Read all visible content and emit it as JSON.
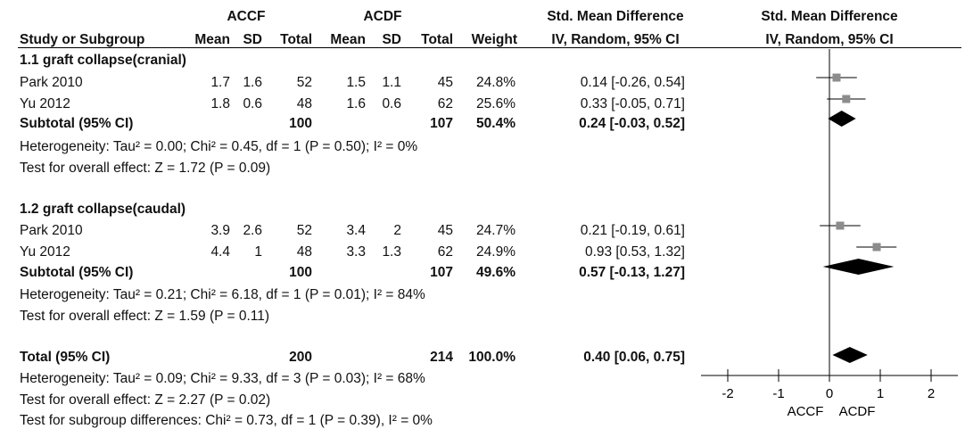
{
  "header": {
    "group1": "ACCF",
    "group2": "ACDF",
    "effect_header": "Std. Mean Difference",
    "plot_header": "Std. Mean Difference",
    "col_study": "Study or Subgroup",
    "col_mean1": "Mean",
    "col_sd1": "SD",
    "col_total1": "Total",
    "col_mean2": "Mean",
    "col_sd2": "SD",
    "col_total2": "Total",
    "col_weight": "Weight",
    "col_ci": "IV, Random, 95% CI",
    "plot_ci": "IV, Random, 95% CI"
  },
  "subgroups": [
    {
      "label": "1.1    graft collapse(cranial)",
      "studies": [
        {
          "name": "Park 2010",
          "mean1": "1.7",
          "sd1": "1.6",
          "total1": "52",
          "mean2": "1.5",
          "sd2": "1.1",
          "total2": "45",
          "weight": "24.8%",
          "ci_text": "0.14 [-0.26, 0.54]"
        },
        {
          "name": "Yu 2012",
          "mean1": "1.8",
          "sd1": "0.6",
          "total1": "48",
          "mean2": "1.6",
          "sd2": "0.6",
          "total2": "62",
          "weight": "25.6%",
          "ci_text": "0.33 [-0.05, 0.71]"
        }
      ],
      "subtotal": {
        "label": "Subtotal (95% CI)",
        "total1": "100",
        "total2": "107",
        "weight": "50.4%",
        "ci_text": "0.24 [-0.03, 0.52]"
      },
      "heterogeneity": "Heterogeneity: Tau² = 0.00; Chi² = 0.45, df = 1 (P = 0.50); I² = 0%",
      "overall": "Test for overall effect: Z = 1.72 (P = 0.09)"
    },
    {
      "label": "1.2    graft collapse(caudal)",
      "studies": [
        {
          "name": "Park 2010",
          "mean1": "3.9",
          "sd1": "2.6",
          "total1": "52",
          "mean2": "3.4",
          "sd2": "2",
          "total2": "45",
          "weight": "24.7%",
          "ci_text": "0.21 [-0.19, 0.61]"
        },
        {
          "name": "Yu 2012",
          "mean1": "4.4",
          "sd1": "1",
          "total1": "48",
          "mean2": "3.3",
          "sd2": "1.3",
          "total2": "62",
          "weight": "24.9%",
          "ci_text": "0.93 [0.53, 1.32]"
        }
      ],
      "subtotal": {
        "label": "Subtotal (95% CI)",
        "total1": "100",
        "total2": "107",
        "weight": "49.6%",
        "ci_text": "0.57 [-0.13, 1.27]"
      },
      "heterogeneity": "Heterogeneity: Tau² = 0.21; Chi² = 6.18, df = 1 (P = 0.01); I² = 84%",
      "overall": "Test for overall effect: Z = 1.59 (P = 0.11)"
    }
  ],
  "total": {
    "label": "Total (95% CI)",
    "total1": "200",
    "total2": "214",
    "weight": "100.0%",
    "ci_text": "0.40 [0.06, 0.75]"
  },
  "footer": {
    "heterogeneity": "Heterogeneity: Tau² = 0.09; Chi² = 9.33, df = 3 (P = 0.03); I² = 68%",
    "overall": "Test for overall effect: Z = 2.27 (P = 0.02)",
    "subgroup_diff": "Test for subgroup differences: Chi² = 0.73, df = 1 (P = 0.39), I² = 0%"
  },
  "colors": {
    "marker": "#8c8c8c",
    "diamond": "#000000"
  },
  "chart_data": {
    "type": "scatter",
    "title": "Std. Mean Difference",
    "xlabel": "IV, Random, 95% CI",
    "xlim": [
      -2,
      2
    ],
    "xticks": [
      "-2",
      "-1",
      "0",
      "1",
      "2"
    ],
    "direction_labels": [
      "ACCF",
      "ACDF"
    ],
    "points": [
      {
        "row": "Park 2010 (cranial)",
        "kind": "study",
        "est": 0.14,
        "lo": -0.26,
        "hi": 0.54
      },
      {
        "row": "Yu 2012 (cranial)",
        "kind": "study",
        "est": 0.33,
        "lo": -0.05,
        "hi": 0.71
      },
      {
        "row": "Subtotal (cranial)",
        "kind": "diamond",
        "est": 0.24,
        "lo": -0.03,
        "hi": 0.52
      },
      {
        "row": "Park 2010 (caudal)",
        "kind": "study",
        "est": 0.21,
        "lo": -0.19,
        "hi": 0.61
      },
      {
        "row": "Yu 2012 (caudal)",
        "kind": "study",
        "est": 0.93,
        "lo": 0.53,
        "hi": 1.32
      },
      {
        "row": "Subtotal (caudal)",
        "kind": "diamond",
        "est": 0.57,
        "lo": -0.13,
        "hi": 1.27
      },
      {
        "row": "Total",
        "kind": "diamond",
        "est": 0.4,
        "lo": 0.06,
        "hi": 0.75
      }
    ]
  }
}
